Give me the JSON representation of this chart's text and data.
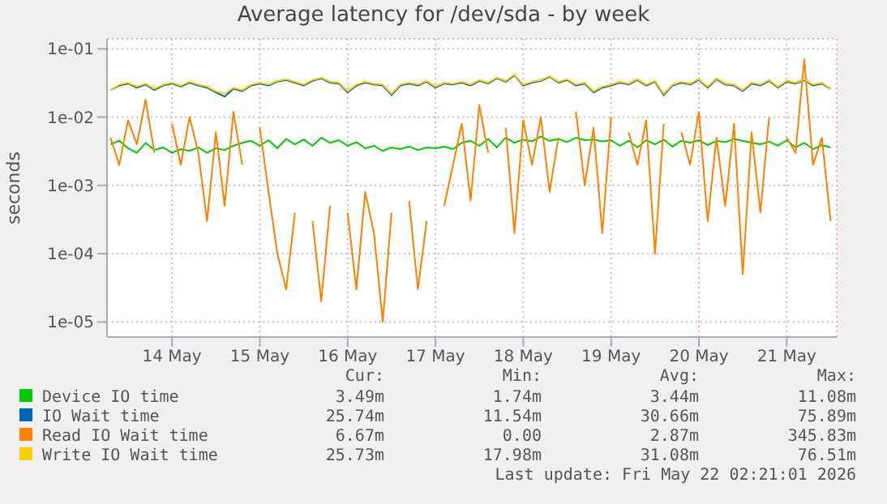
{
  "chart_data": {
    "type": "line",
    "title": "Average latency for /dev/sda - by week",
    "ylabel": "seconds",
    "log": "y",
    "grid": true,
    "legend": "bottom",
    "marker": "none",
    "line_style": "solid",
    "x": [
      "2026-05-13T07:12",
      "2026-05-13T09:36",
      "2026-05-13T12:00",
      "2026-05-13T14:24",
      "2026-05-13T16:48",
      "2026-05-13T19:12",
      "2026-05-13T21:36",
      "2026-05-14T00:00",
      "2026-05-14T02:24",
      "2026-05-14T04:48",
      "2026-05-14T07:12",
      "2026-05-14T09:36",
      "2026-05-14T12:00",
      "2026-05-14T14:24",
      "2026-05-14T16:48",
      "2026-05-14T19:12",
      "2026-05-14T21:36",
      "2026-05-15T00:00",
      "2026-05-15T02:24",
      "2026-05-15T04:48",
      "2026-05-15T07:12",
      "2026-05-15T09:36",
      "2026-05-15T12:00",
      "2026-05-15T14:24",
      "2026-05-15T16:48",
      "2026-05-15T19:12",
      "2026-05-15T21:36",
      "2026-05-16T00:00",
      "2026-05-16T02:24",
      "2026-05-16T04:48",
      "2026-05-16T07:12",
      "2026-05-16T09:36",
      "2026-05-16T12:00",
      "2026-05-16T14:24",
      "2026-05-16T16:48",
      "2026-05-16T19:12",
      "2026-05-16T21:36",
      "2026-05-17T00:00",
      "2026-05-17T02:24",
      "2026-05-17T04:48",
      "2026-05-17T07:12",
      "2026-05-17T09:36",
      "2026-05-17T12:00",
      "2026-05-17T14:24",
      "2026-05-17T16:48",
      "2026-05-17T19:12",
      "2026-05-17T21:36",
      "2026-05-18T00:00",
      "2026-05-18T02:24",
      "2026-05-18T04:48",
      "2026-05-18T07:12",
      "2026-05-18T09:36",
      "2026-05-18T12:00",
      "2026-05-18T14:24",
      "2026-05-18T16:48",
      "2026-05-18T19:12",
      "2026-05-18T21:36",
      "2026-05-19T00:00",
      "2026-05-19T02:24",
      "2026-05-19T04:48",
      "2026-05-19T07:12",
      "2026-05-19T09:36",
      "2026-05-19T12:00",
      "2026-05-19T14:24",
      "2026-05-19T16:48",
      "2026-05-19T19:12",
      "2026-05-19T21:36",
      "2026-05-20T00:00",
      "2026-05-20T02:24",
      "2026-05-20T04:48",
      "2026-05-20T07:12",
      "2026-05-20T09:36",
      "2026-05-20T12:00",
      "2026-05-20T14:24",
      "2026-05-20T16:48",
      "2026-05-20T19:12",
      "2026-05-20T21:36",
      "2026-05-21T00:00",
      "2026-05-21T02:24",
      "2026-05-21T04:48",
      "2026-05-21T07:12",
      "2026-05-21T09:36",
      "2026-05-21T12:00"
    ],
    "xlim": [
      "2026-05-13T06:15",
      "2026-05-21T13:40"
    ],
    "xticks": [
      {
        "value": "2026-05-14",
        "label": "14 May"
      },
      {
        "value": "2026-05-15",
        "label": "15 May"
      },
      {
        "value": "2026-05-16",
        "label": "16 May"
      },
      {
        "value": "2026-05-17",
        "label": "17 May"
      },
      {
        "value": "2026-05-18",
        "label": "18 May"
      },
      {
        "value": "2026-05-19",
        "label": "19 May"
      },
      {
        "value": "2026-05-20",
        "label": "20 May"
      },
      {
        "value": "2026-05-21",
        "label": "21 May"
      }
    ],
    "ylim": [
      6e-06,
      0.14
    ],
    "yticks": [
      {
        "value": 1e-05,
        "label": "1e-05"
      },
      {
        "value": 0.0001,
        "label": "1e-04"
      },
      {
        "value": 0.001,
        "label": "1e-03"
      },
      {
        "value": 0.01,
        "label": "1e-02"
      },
      {
        "value": 0.1,
        "label": "1e-01"
      }
    ],
    "series": [
      {
        "name": "Device IO time",
        "color": "#00cc00",
        "values": [
          0.004,
          0.0045,
          0.0035,
          0.003,
          0.0042,
          0.0033,
          0.0036,
          0.003,
          0.0034,
          0.0032,
          0.0036,
          0.003,
          0.0035,
          0.0033,
          0.0038,
          0.0042,
          0.0045,
          0.0038,
          0.0046,
          0.0035,
          0.0048,
          0.004,
          0.0047,
          0.0038,
          0.005,
          0.0042,
          0.0046,
          0.0038,
          0.0043,
          0.0035,
          0.0038,
          0.0032,
          0.0036,
          0.0034,
          0.0037,
          0.0033,
          0.0036,
          0.0035,
          0.0037,
          0.0034,
          0.0042,
          0.0045,
          0.0038,
          0.0048,
          0.0036,
          0.005,
          0.0042,
          0.0047,
          0.0044,
          0.0052,
          0.0045,
          0.0048,
          0.0043,
          0.005,
          0.0046,
          0.0047,
          0.0044,
          0.0046,
          0.0038,
          0.0045,
          0.0036,
          0.0046,
          0.004,
          0.0047,
          0.0037,
          0.0045,
          0.0042,
          0.0046,
          0.0039,
          0.0045,
          0.0043,
          0.0048,
          0.0045,
          0.0042,
          0.004,
          0.0044,
          0.0038,
          0.0046,
          0.0036,
          0.0042,
          0.0034,
          0.0039,
          0.0036
        ]
      },
      {
        "name": "IO Wait time",
        "color": "#0066b3",
        "values": [
          0.025,
          0.029,
          0.031,
          0.027,
          0.03,
          0.025,
          0.029,
          0.031,
          0.028,
          0.032,
          0.029,
          0.027,
          0.023,
          0.02,
          0.026,
          0.024,
          0.029,
          0.031,
          0.029,
          0.033,
          0.035,
          0.032,
          0.029,
          0.034,
          0.037,
          0.032,
          0.031,
          0.023,
          0.029,
          0.032,
          0.03,
          0.029,
          0.021,
          0.029,
          0.031,
          0.029,
          0.033,
          0.027,
          0.031,
          0.03,
          0.032,
          0.029,
          0.034,
          0.031,
          0.037,
          0.033,
          0.041,
          0.029,
          0.032,
          0.034,
          0.039,
          0.032,
          0.035,
          0.029,
          0.031,
          0.023,
          0.027,
          0.029,
          0.032,
          0.03,
          0.035,
          0.029,
          0.033,
          0.021,
          0.029,
          0.032,
          0.03,
          0.035,
          0.027,
          0.036,
          0.03,
          0.029,
          0.024,
          0.031,
          0.029,
          0.034,
          0.027,
          0.033,
          0.031,
          0.035,
          0.029,
          0.031,
          0.026
        ]
      },
      {
        "name": "Read IO Wait time",
        "color": "#ff8000",
        "values": [
          0.005,
          0.002,
          0.009,
          0.004,
          0.018,
          0.003,
          null,
          0.008,
          0.002,
          0.01,
          0.003,
          0.0003,
          0.006,
          0.0005,
          0.012,
          0.002,
          null,
          0.007,
          0.0008,
          0.0001,
          3e-05,
          0.0004,
          null,
          0.0003,
          2e-05,
          0.0005,
          null,
          0.0004,
          3e-05,
          0.0008,
          0.0002,
          1e-05,
          0.0004,
          null,
          0.0006,
          3e-05,
          0.0003,
          null,
          0.0005,
          0.002,
          0.008,
          0.0006,
          0.015,
          0.003,
          null,
          0.007,
          0.0002,
          0.009,
          0.002,
          0.01,
          0.0008,
          0.005,
          null,
          0.012,
          0.001,
          0.007,
          0.0002,
          0.01,
          null,
          0.006,
          0.002,
          0.009,
          0.0001,
          0.008,
          null,
          0.006,
          0.002,
          0.012,
          0.0003,
          0.005,
          0.0005,
          0.008,
          5e-05,
          0.006,
          0.0004,
          0.01,
          null,
          0.005,
          0.003,
          0.07,
          0.002,
          0.005,
          0.0003
        ]
      },
      {
        "name": "Write IO Wait time",
        "color": "#ffcc00",
        "values": [
          0.025,
          0.03,
          0.032,
          0.028,
          0.031,
          0.026,
          0.03,
          0.032,
          0.029,
          0.033,
          0.03,
          0.028,
          0.024,
          0.022,
          0.027,
          0.025,
          0.03,
          0.032,
          0.03,
          0.034,
          0.036,
          0.033,
          0.03,
          0.035,
          0.038,
          0.033,
          0.032,
          0.024,
          0.03,
          0.033,
          0.031,
          0.03,
          0.022,
          0.03,
          0.032,
          0.03,
          0.034,
          0.028,
          0.032,
          0.031,
          0.033,
          0.03,
          0.035,
          0.032,
          0.038,
          0.034,
          0.042,
          0.03,
          0.033,
          0.035,
          0.04,
          0.033,
          0.036,
          0.03,
          0.032,
          0.024,
          0.028,
          0.03,
          0.033,
          0.031,
          0.036,
          0.03,
          0.034,
          0.022,
          0.03,
          0.033,
          0.031,
          0.036,
          0.028,
          0.037,
          0.031,
          0.03,
          0.025,
          0.032,
          0.03,
          0.035,
          0.028,
          0.034,
          0.032,
          0.036,
          0.03,
          0.032,
          0.026
        ]
      }
    ],
    "annotations": [
      "Cur:",
      "Min:",
      "Avg:",
      "Max:",
      "3.49m",
      "1.74m",
      "3.44m",
      "11.08m",
      "25.74m",
      "11.54m",
      "30.66m",
      "75.89m",
      "6.67m",
      "0.00",
      "2.87m",
      "345.83m",
      "25.73m",
      "17.98m",
      "31.08m",
      "76.51m",
      "Last update: Fri May 22 02:21:01 2026"
    ]
  }
}
